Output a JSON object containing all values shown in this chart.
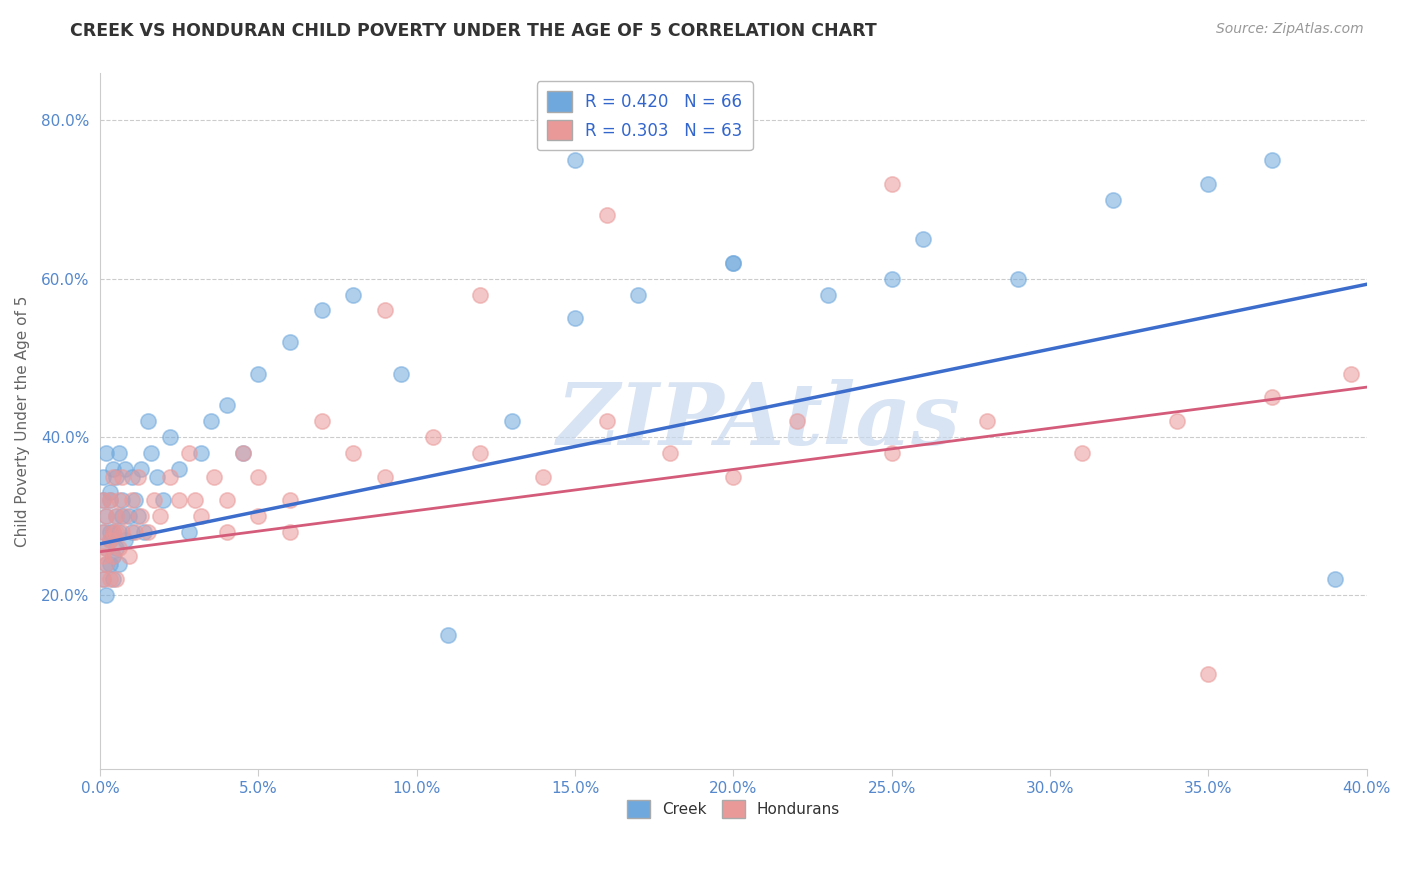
{
  "title": "CREEK VS HONDURAN CHILD POVERTY UNDER THE AGE OF 5 CORRELATION CHART",
  "source": "Source: ZipAtlas.com",
  "ylabel": "Child Poverty Under the Age of 5",
  "xlim": [
    0.0,
    0.4
  ],
  "ylim": [
    -0.02,
    0.86
  ],
  "xticks": [
    0.0,
    0.05,
    0.1,
    0.15,
    0.2,
    0.25,
    0.3,
    0.35,
    0.4
  ],
  "yticks": [
    0.2,
    0.4,
    0.6,
    0.8
  ],
  "creek_R": 0.42,
  "creek_N": 66,
  "honduran_R": 0.303,
  "honduran_N": 63,
  "creek_color": "#6fa8dc",
  "honduran_color": "#ea9999",
  "creek_line_color": "#3d6dcc",
  "honduran_line_color": "#d45c7a",
  "creek_slope": 0.82,
  "creek_intercept": 0.265,
  "honduran_slope": 0.52,
  "honduran_intercept": 0.255,
  "watermark_text": "ZIPAtlas",
  "watermark_color": "#c8d8ee",
  "creek_x": [
    0.001,
    0.001,
    0.001,
    0.001,
    0.002,
    0.002,
    0.002,
    0.002,
    0.002,
    0.003,
    0.003,
    0.003,
    0.003,
    0.003,
    0.004,
    0.004,
    0.004,
    0.004,
    0.005,
    0.005,
    0.005,
    0.006,
    0.006,
    0.006,
    0.007,
    0.007,
    0.008,
    0.008,
    0.009,
    0.01,
    0.01,
    0.011,
    0.012,
    0.013,
    0.014,
    0.015,
    0.016,
    0.018,
    0.02,
    0.022,
    0.025,
    0.028,
    0.032,
    0.035,
    0.04,
    0.045,
    0.05,
    0.06,
    0.07,
    0.08,
    0.095,
    0.11,
    0.13,
    0.15,
    0.17,
    0.2,
    0.23,
    0.26,
    0.29,
    0.32,
    0.35,
    0.37,
    0.39,
    0.15,
    0.2,
    0.25
  ],
  "creek_y": [
    0.28,
    0.32,
    0.22,
    0.35,
    0.24,
    0.3,
    0.38,
    0.2,
    0.26,
    0.27,
    0.33,
    0.28,
    0.24,
    0.32,
    0.36,
    0.22,
    0.28,
    0.25,
    0.3,
    0.35,
    0.26,
    0.38,
    0.28,
    0.24,
    0.32,
    0.3,
    0.27,
    0.36,
    0.3,
    0.28,
    0.35,
    0.32,
    0.3,
    0.36,
    0.28,
    0.42,
    0.38,
    0.35,
    0.32,
    0.4,
    0.36,
    0.28,
    0.38,
    0.42,
    0.44,
    0.38,
    0.48,
    0.52,
    0.56,
    0.58,
    0.48,
    0.15,
    0.42,
    0.55,
    0.58,
    0.62,
    0.58,
    0.65,
    0.6,
    0.7,
    0.72,
    0.75,
    0.22,
    0.75,
    0.62,
    0.6
  ],
  "honduran_x": [
    0.001,
    0.001,
    0.001,
    0.001,
    0.002,
    0.002,
    0.002,
    0.003,
    0.003,
    0.003,
    0.004,
    0.004,
    0.004,
    0.005,
    0.005,
    0.005,
    0.006,
    0.006,
    0.007,
    0.007,
    0.008,
    0.009,
    0.01,
    0.011,
    0.012,
    0.013,
    0.015,
    0.017,
    0.019,
    0.022,
    0.025,
    0.028,
    0.032,
    0.036,
    0.04,
    0.045,
    0.05,
    0.06,
    0.07,
    0.08,
    0.09,
    0.105,
    0.12,
    0.14,
    0.16,
    0.18,
    0.2,
    0.22,
    0.25,
    0.28,
    0.31,
    0.34,
    0.37,
    0.395,
    0.03,
    0.04,
    0.05,
    0.06,
    0.09,
    0.12,
    0.16,
    0.25,
    0.35
  ],
  "honduran_y": [
    0.25,
    0.28,
    0.22,
    0.32,
    0.3,
    0.24,
    0.26,
    0.27,
    0.32,
    0.22,
    0.28,
    0.35,
    0.25,
    0.3,
    0.22,
    0.28,
    0.32,
    0.26,
    0.28,
    0.35,
    0.3,
    0.25,
    0.32,
    0.28,
    0.35,
    0.3,
    0.28,
    0.32,
    0.3,
    0.35,
    0.32,
    0.38,
    0.3,
    0.35,
    0.32,
    0.38,
    0.35,
    0.32,
    0.42,
    0.38,
    0.35,
    0.4,
    0.38,
    0.35,
    0.42,
    0.38,
    0.35,
    0.42,
    0.38,
    0.42,
    0.38,
    0.42,
    0.45,
    0.48,
    0.32,
    0.28,
    0.3,
    0.28,
    0.56,
    0.58,
    0.68,
    0.72,
    0.1
  ]
}
